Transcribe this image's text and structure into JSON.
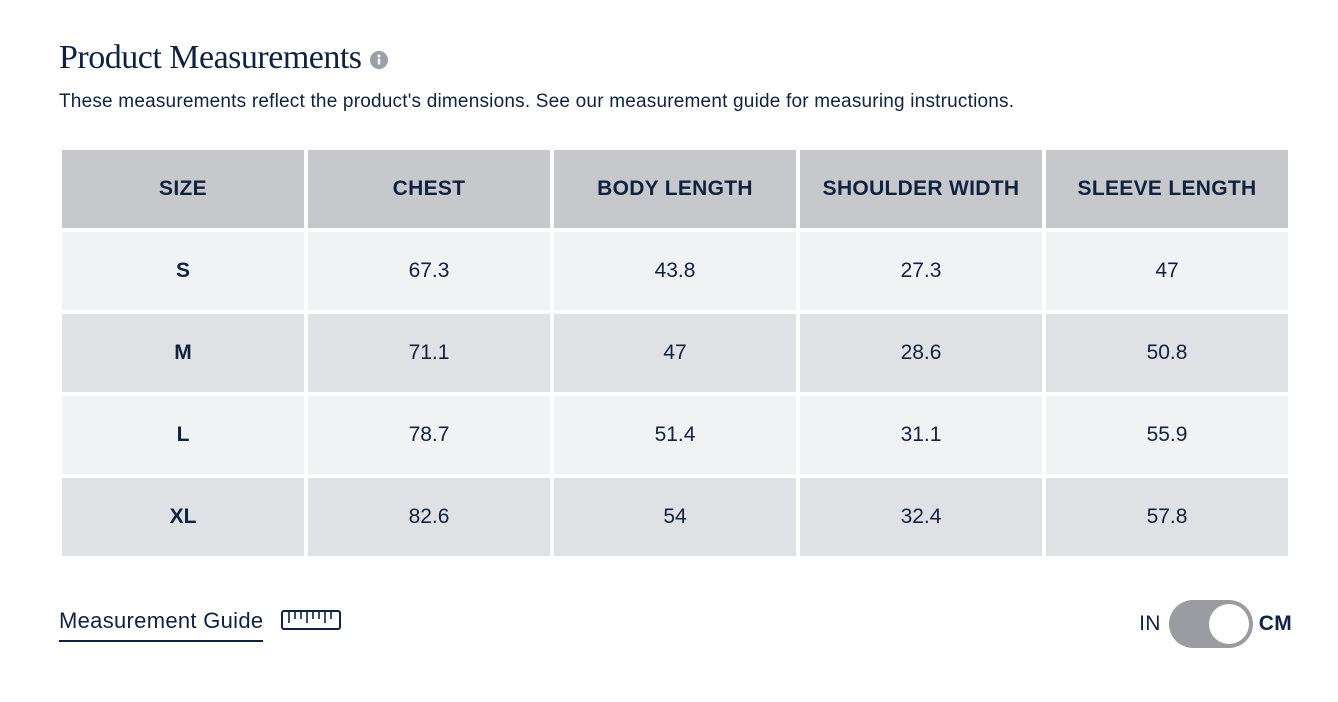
{
  "header": {
    "title": "Product Measurements",
    "info_icon": "info-icon",
    "subtitle": "These measurements reflect the product's dimensions. See our measurement guide for measuring instructions."
  },
  "table": {
    "columns": [
      "SIZE",
      "CHEST",
      "BODY LENGTH",
      "SHOULDER WIDTH",
      "SLEEVE LENGTH"
    ],
    "rows": [
      [
        "S",
        "67.3",
        "43.8",
        "27.3",
        "47"
      ],
      [
        "M",
        "71.1",
        "47",
        "28.6",
        "50.8"
      ],
      [
        "L",
        "78.7",
        "51.4",
        "31.1",
        "55.9"
      ],
      [
        "XL",
        "82.6",
        "54",
        "32.4",
        "57.8"
      ]
    ]
  },
  "footer": {
    "guide_link": "Measurement Guide",
    "guide_icon": "ruler-icon",
    "unit_left": "IN",
    "unit_right": "CM",
    "selected_unit": "CM"
  },
  "colors": {
    "text": "#0f2240",
    "header_bg": "#c6c8cc",
    "row_light": "#f1f2f4",
    "row_dark": "#e0e1e4",
    "toggle_track": "#9a9ca2"
  }
}
